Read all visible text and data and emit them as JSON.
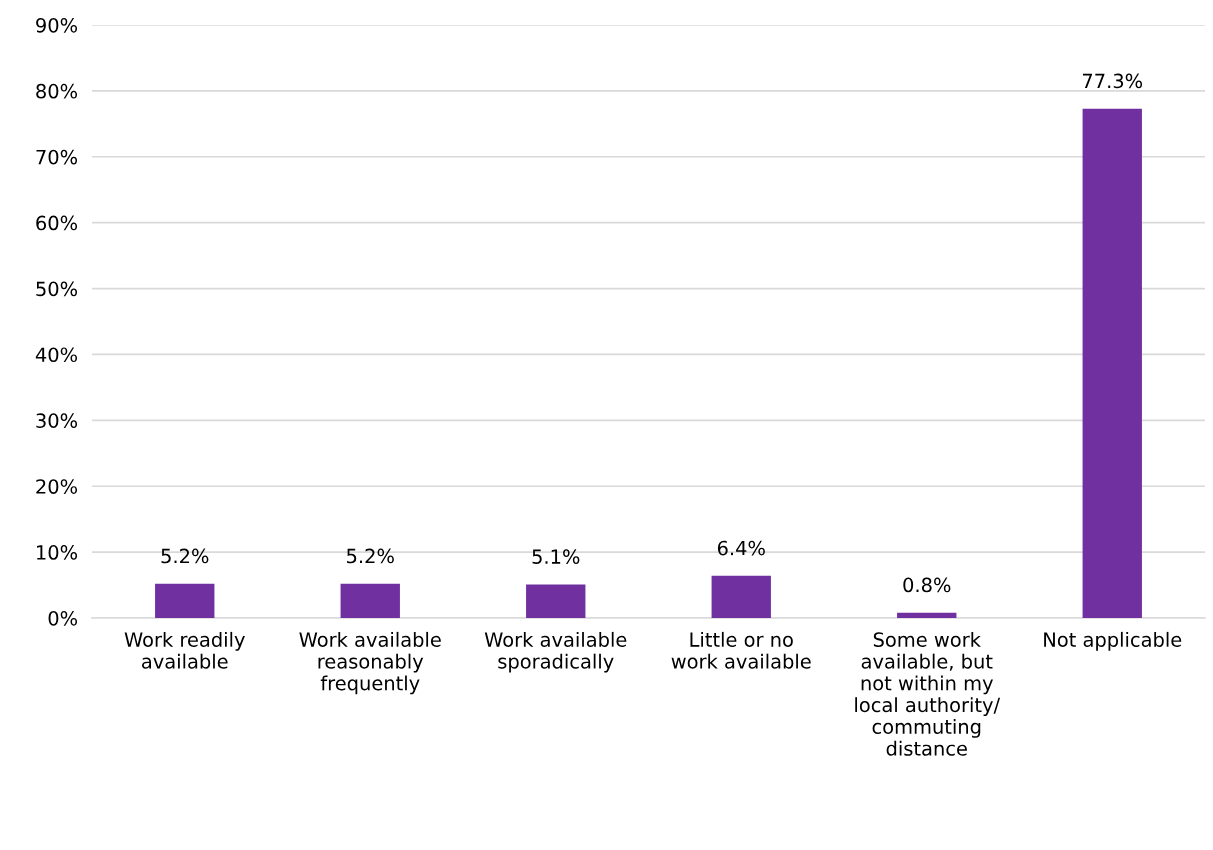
{
  "chart_data": {
    "type": "bar",
    "categories": [
      "Work readily\navailable",
      "Work available\nreasonably\nfrequently",
      "Work available\nsporadically",
      "Little or no\nwork available",
      "Some work\navailable, but\nnot within my\nlocal authority/\ncommuting\ndistance",
      "Not applicable"
    ],
    "values": [
      5.2,
      5.2,
      5.1,
      6.4,
      0.8,
      77.3
    ],
    "value_labels": [
      "5.2%",
      "5.2%",
      "5.1%",
      "6.4%",
      "0.8%",
      "77.3%"
    ],
    "color": "#7030a0",
    "ylim": [
      0,
      90
    ],
    "yticks": [
      {
        "value": 0,
        "label": "0%"
      },
      {
        "value": 10,
        "label": "10%"
      },
      {
        "value": 20,
        "label": "20%"
      },
      {
        "value": 30,
        "label": "30%"
      },
      {
        "value": 40,
        "label": "40%"
      },
      {
        "value": 50,
        "label": "50%"
      },
      {
        "value": 60,
        "label": "60%"
      },
      {
        "value": 70,
        "label": "70%"
      },
      {
        "value": 80,
        "label": "80%"
      },
      {
        "value": 90,
        "label": "90%"
      }
    ],
    "grid": "y",
    "legend": false
  }
}
